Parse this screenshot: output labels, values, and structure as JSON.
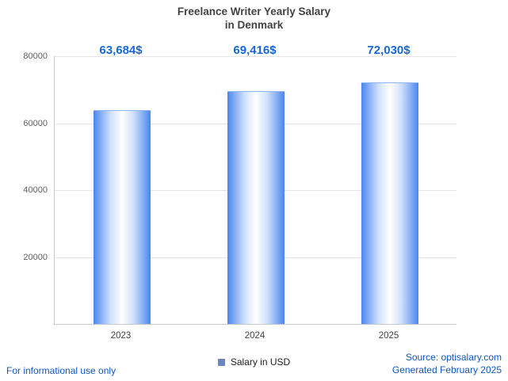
{
  "title": {
    "line1": "Freelance Writer Yearly Salary",
    "line2": "in Denmark"
  },
  "chart_data": {
    "type": "bar",
    "title": "Freelance Writer Yearly Salary in Denmark",
    "categories": [
      "2023",
      "2024",
      "2025"
    ],
    "values": [
      63684,
      69416,
      72030
    ],
    "value_labels": [
      "63,684$",
      "69,416$",
      "72,030$"
    ],
    "xlabel": "",
    "ylabel": "",
    "ylim": [
      0,
      80000
    ],
    "yticks": [
      20000,
      40000,
      60000,
      80000
    ],
    "grid": true,
    "legend": {
      "label": "Salary in USD",
      "position": "bottom"
    },
    "colors": {
      "bar_edge": "#4a86ee",
      "bar_center": "#ffffff",
      "value_label": "#1967d2",
      "legend_swatch": "#6d87be",
      "footer_blue": "#1155cc"
    }
  },
  "footer": {
    "disclaimer": "For informational use only",
    "source": "Source: optisalary.com",
    "generated": "Generated February 2025"
  }
}
